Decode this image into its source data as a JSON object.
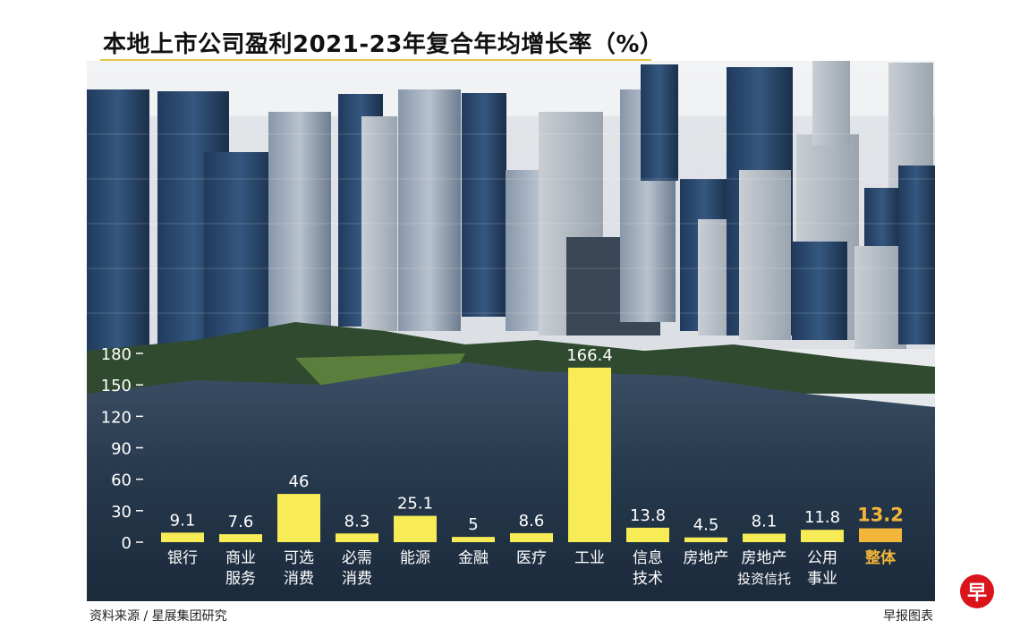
{
  "title": "本地上市公司盈利2021-23年复合年均增长率（%）",
  "source": "资料来源 / 星展集团研究",
  "credit": "早报图表",
  "logo_text": "早",
  "colors": {
    "bar": "#f7ec56",
    "bar_highlight": "#f4b63a",
    "label_highlight": "#f4b63a",
    "text": "#ffffff"
  },
  "chart_data": {
    "type": "bar",
    "title": "本地上市公司盈利2021-23年复合年均增长率（%）",
    "xlabel": "",
    "ylabel": "",
    "ylim": [
      0,
      180
    ],
    "yticks": [
      0,
      30,
      60,
      90,
      120,
      150,
      180
    ],
    "grid": false,
    "categories": [
      [
        "银行"
      ],
      [
        "商业",
        "服务"
      ],
      [
        "可选",
        "消费"
      ],
      [
        "必需",
        "消费"
      ],
      [
        "能源"
      ],
      [
        "金融"
      ],
      [
        "医疗"
      ],
      [
        "工业"
      ],
      [
        "信息",
        "技术"
      ],
      [
        "房地产"
      ],
      [
        "房地产",
        "投资信托"
      ],
      [
        "公用",
        "事业"
      ],
      [
        "整体"
      ]
    ],
    "values": [
      9.1,
      7.6,
      46,
      8.3,
      25.1,
      5,
      8.6,
      166.4,
      13.8,
      4.5,
      8.1,
      11.8,
      13.2
    ],
    "value_labels": [
      "9.1",
      "7.6",
      "46",
      "8.3",
      "25.1",
      "5",
      "8.6",
      "166.4",
      "13.8",
      "4.5",
      "8.1",
      "11.8",
      "13.2"
    ],
    "highlight_index": 12
  }
}
